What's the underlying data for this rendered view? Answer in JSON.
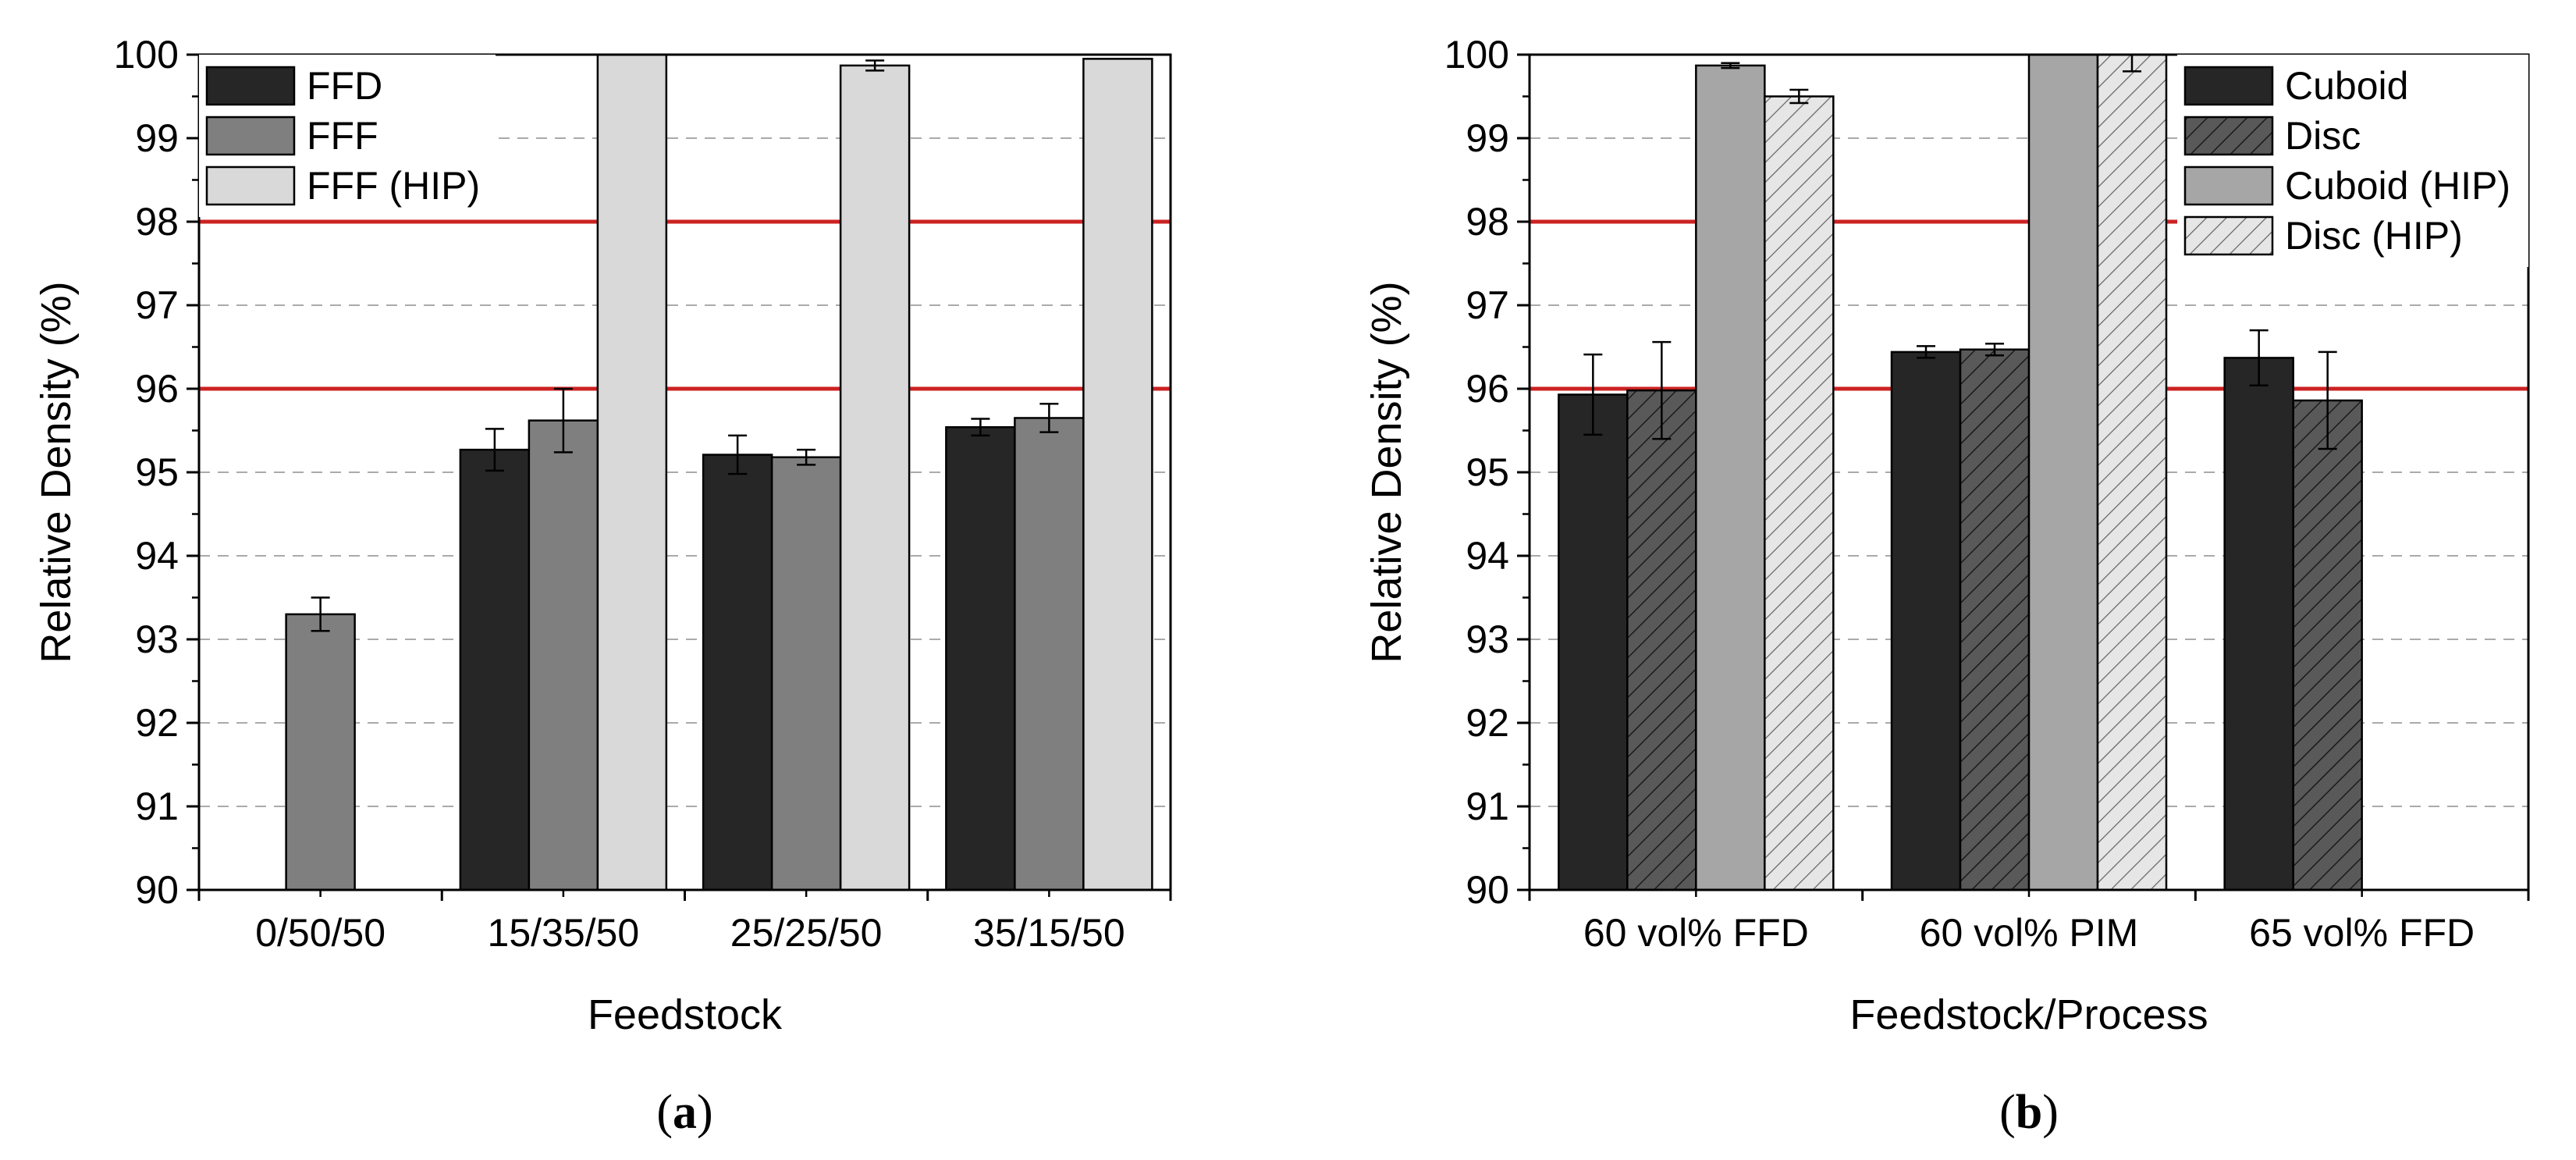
{
  "chart_data": [
    {
      "type": "bar",
      "panel_label": "(a)",
      "panel_letter": "a",
      "xlabel": "Feedstock",
      "ylabel": "Relative Density (%)",
      "ylim": [
        90,
        100
      ],
      "yticks": [
        "90",
        "91",
        "92",
        "93",
        "94",
        "95",
        "96",
        "97",
        "98",
        "99",
        "100"
      ],
      "categories": [
        "0/50/50",
        "15/35/50",
        "25/25/50",
        "35/15/50"
      ],
      "series": [
        {
          "name": "FFD",
          "color": "#262626",
          "hatch": false,
          "values": [
            null,
            95.27,
            95.21,
            95.54
          ],
          "errors": [
            null,
            0.25,
            0.23,
            0.1
          ]
        },
        {
          "name": "FFF",
          "color": "#7f7f7f",
          "hatch": false,
          "values": [
            93.3,
            95.62,
            95.18,
            95.65
          ],
          "errors": [
            0.2,
            0.38,
            0.09,
            0.17
          ]
        },
        {
          "name": "FFF (HIP)",
          "color": "#d9d9d9",
          "hatch": false,
          "values": [
            null,
            100.0,
            99.87,
            99.95
          ],
          "errors": [
            null,
            0,
            0.06,
            0
          ]
        }
      ],
      "reference_lines": [
        96,
        98
      ],
      "reference_color": "#cc2222",
      "grid": "horizontal dashed",
      "legend_position": "top-left"
    },
    {
      "type": "bar",
      "panel_label": "(b)",
      "panel_letter": "b",
      "xlabel": "Feedstock/Process",
      "ylabel": "Relative Density (%)",
      "ylim": [
        90,
        100
      ],
      "yticks": [
        "90",
        "91",
        "92",
        "93",
        "94",
        "95",
        "96",
        "97",
        "98",
        "99",
        "100"
      ],
      "categories": [
        "60 vol% FFD",
        "60 vol% PIM",
        "65 vol% FFD"
      ],
      "series": [
        {
          "name": "Cuboid",
          "color": "#262626",
          "hatch": false,
          "values": [
            95.93,
            96.44,
            96.37
          ],
          "errors": [
            0.48,
            0.07,
            0.33
          ]
        },
        {
          "name": "Disc",
          "color": "#595959",
          "hatch": true,
          "values": [
            95.98,
            96.47,
            95.86
          ],
          "errors": [
            0.58,
            0.07,
            0.58
          ]
        },
        {
          "name": "Cuboid (HIP)",
          "color": "#a6a6a6",
          "hatch": false,
          "values": [
            99.87,
            100.0,
            null
          ],
          "errors": [
            0.03,
            0,
            null
          ]
        },
        {
          "name": "Disc (HIP)",
          "color": "#e6e6e6",
          "hatch": true,
          "values": [
            99.5,
            100.0,
            null
          ],
          "errors": [
            0.08,
            0.2,
            null
          ]
        }
      ],
      "reference_lines": [
        96,
        98
      ],
      "reference_color": "#cc2222",
      "grid": "horizontal dashed",
      "legend_position": "top-right"
    }
  ]
}
